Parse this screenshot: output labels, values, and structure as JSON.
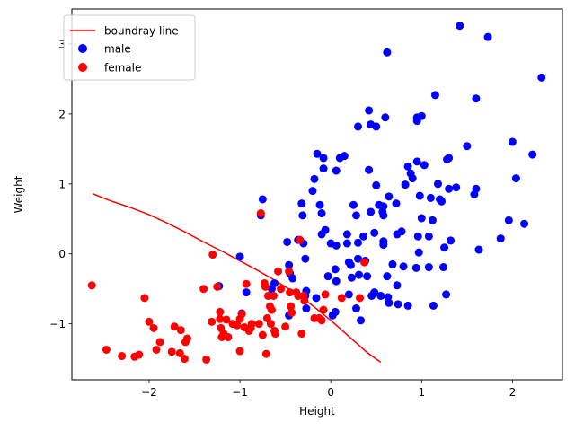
{
  "chart_data": {
    "type": "scatter",
    "title": "",
    "xlabel": "Height",
    "ylabel": "Weight",
    "xlim": [
      -2.85,
      2.55
    ],
    "ylim": [
      -1.8,
      3.5
    ],
    "xticks": [
      -2,
      -1,
      0,
      1,
      2
    ],
    "yticks": [
      -1,
      0,
      1,
      2,
      3
    ],
    "grid": false,
    "legend_position": "upper left",
    "colors": {
      "line": "#ff0000",
      "male": "#0000ff",
      "female": "#ff0000"
    },
    "line": {
      "name": "boundray line",
      "x": [
        -2.62,
        -2.45,
        -2.2,
        -2.0,
        -1.8,
        -1.6,
        -1.4,
        -1.2,
        -1.0,
        -0.8,
        -0.6,
        -0.4,
        -0.2,
        0.0,
        0.2,
        0.4,
        0.55
      ],
      "y": [
        0.86,
        0.77,
        0.66,
        0.56,
        0.44,
        0.31,
        0.17,
        0.04,
        -0.1,
        -0.24,
        -0.39,
        -0.55,
        -0.74,
        -0.95,
        -1.18,
        -1.41,
        -1.55
      ]
    },
    "series": [
      {
        "name": "male",
        "points": [
          [
            -0.75,
            0.78
          ],
          [
            -0.77,
            0.55
          ],
          [
            -1.0,
            -0.04
          ],
          [
            -0.98,
            -0.85
          ],
          [
            -1.23,
            -0.46
          ],
          [
            -0.93,
            -0.55
          ],
          [
            -0.65,
            -0.5
          ],
          [
            -0.62,
            -0.42
          ],
          [
            -0.48,
            0.17
          ],
          [
            -0.46,
            -0.16
          ],
          [
            -0.45,
            -0.28
          ],
          [
            -0.42,
            -0.35
          ],
          [
            -0.46,
            -0.88
          ],
          [
            -0.36,
            0.2
          ],
          [
            -0.32,
            0.72
          ],
          [
            -0.31,
            0.55
          ],
          [
            -0.3,
            0.15
          ],
          [
            -0.28,
            -0.07
          ],
          [
            -0.27,
            -0.53
          ],
          [
            -0.28,
            -0.6
          ],
          [
            -0.27,
            -0.78
          ],
          [
            -0.2,
            0.9
          ],
          [
            -0.18,
            1.07
          ],
          [
            -0.15,
            1.43
          ],
          [
            -0.12,
            0.7
          ],
          [
            -0.1,
            0.58
          ],
          [
            -0.1,
            0.28
          ],
          [
            -0.08,
            1.37
          ],
          [
            -0.08,
            1.22
          ],
          [
            -0.06,
            0.34
          ],
          [
            -0.16,
            -0.63
          ],
          [
            -0.03,
            -0.32
          ],
          [
            0.0,
            0.15
          ],
          [
            0.02,
            -0.88
          ],
          [
            0.05,
            -0.83
          ],
          [
            0.05,
            -0.22
          ],
          [
            0.06,
            -0.39
          ],
          [
            0.06,
            0.12
          ],
          [
            0.06,
            1.19
          ],
          [
            0.1,
            1.37
          ],
          [
            0.15,
            1.4
          ],
          [
            0.18,
            0.15
          ],
          [
            0.18,
            0.28
          ],
          [
            0.2,
            -0.12
          ],
          [
            0.2,
            -0.58
          ],
          [
            0.22,
            -0.16
          ],
          [
            0.23,
            -0.34
          ],
          [
            0.25,
            0.7
          ],
          [
            0.28,
            0.55
          ],
          [
            0.28,
            -0.78
          ],
          [
            0.3,
            1.82
          ],
          [
            0.3,
            0.16
          ],
          [
            0.3,
            -0.07
          ],
          [
            0.31,
            -0.3
          ],
          [
            0.33,
            -0.95
          ],
          [
            0.36,
            0.25
          ],
          [
            0.38,
            -0.1
          ],
          [
            0.4,
            -0.32
          ],
          [
            0.42,
            2.05
          ],
          [
            0.42,
            1.2
          ],
          [
            0.44,
            1.85
          ],
          [
            0.44,
            0.6
          ],
          [
            0.45,
            -0.6
          ],
          [
            0.48,
            0.3
          ],
          [
            0.48,
            -0.55
          ],
          [
            0.5,
            1.82
          ],
          [
            0.5,
            0.98
          ],
          [
            0.53,
            0.7
          ],
          [
            0.55,
            -0.6
          ],
          [
            0.57,
            0.6
          ],
          [
            0.58,
            0.68
          ],
          [
            0.58,
            0.55
          ],
          [
            0.58,
            0.18
          ],
          [
            0.58,
            0.13
          ],
          [
            0.6,
            1.95
          ],
          [
            0.62,
            2.88
          ],
          [
            0.62,
            -0.32
          ],
          [
            0.63,
            -0.62
          ],
          [
            0.64,
            -0.7
          ],
          [
            0.64,
            0.82
          ],
          [
            0.68,
            -0.15
          ],
          [
            0.72,
            0.72
          ],
          [
            0.73,
            0.28
          ],
          [
            0.73,
            -0.45
          ],
          [
            0.74,
            -0.72
          ],
          [
            0.78,
            0.32
          ],
          [
            0.8,
            -0.18
          ],
          [
            0.82,
            0.99
          ],
          [
            0.85,
            1.25
          ],
          [
            0.85,
            -0.74
          ],
          [
            0.88,
            1.15
          ],
          [
            0.9,
            1.08
          ],
          [
            0.94,
            -0.2
          ],
          [
            0.95,
            1.95
          ],
          [
            0.95,
            1.9
          ],
          [
            0.95,
            1.32
          ],
          [
            0.96,
            0.25
          ],
          [
            0.97,
            0.02
          ],
          [
            0.98,
            0.83
          ],
          [
            1.0,
            1.97
          ],
          [
            1.0,
            0.51
          ],
          [
            1.03,
            1.27
          ],
          [
            1.08,
            -0.19
          ],
          [
            1.08,
            0.25
          ],
          [
            1.1,
            0.8
          ],
          [
            1.12,
            0.48
          ],
          [
            1.13,
            -0.74
          ],
          [
            1.15,
            2.27
          ],
          [
            1.18,
            1.0
          ],
          [
            1.2,
            0.78
          ],
          [
            1.22,
            0.75
          ],
          [
            1.24,
            -0.19
          ],
          [
            1.25,
            0.09
          ],
          [
            1.27,
            -0.58
          ],
          [
            1.28,
            1.35
          ],
          [
            1.3,
            1.37
          ],
          [
            1.3,
            0.93
          ],
          [
            1.32,
            0.19
          ],
          [
            1.38,
            0.95
          ],
          [
            1.42,
            3.26
          ],
          [
            1.5,
            1.54
          ],
          [
            1.58,
            0.85
          ],
          [
            1.6,
            2.22
          ],
          [
            1.6,
            0.93
          ],
          [
            1.63,
            0.06
          ],
          [
            1.73,
            3.1
          ],
          [
            1.87,
            0.22
          ],
          [
            1.96,
            0.48
          ],
          [
            2.0,
            1.6
          ],
          [
            2.04,
            1.08
          ],
          [
            2.13,
            0.43
          ],
          [
            2.22,
            1.42
          ],
          [
            2.32,
            2.52
          ]
        ]
      },
      {
        "name": "female",
        "points": [
          [
            -2.63,
            -0.45
          ],
          [
            -2.47,
            -1.37
          ],
          [
            -2.3,
            -1.46
          ],
          [
            -2.16,
            -1.47
          ],
          [
            -2.11,
            -1.44
          ],
          [
            -2.05,
            -0.63
          ],
          [
            -2.0,
            -0.97
          ],
          [
            -1.95,
            -1.06
          ],
          [
            -1.92,
            -1.37
          ],
          [
            -1.88,
            -1.26
          ],
          [
            -1.75,
            -1.4
          ],
          [
            -1.72,
            -1.04
          ],
          [
            -1.66,
            -1.42
          ],
          [
            -1.65,
            -1.09
          ],
          [
            -1.61,
            -1.5
          ],
          [
            -1.6,
            -1.26
          ],
          [
            -1.58,
            -1.21
          ],
          [
            -1.4,
            -0.5
          ],
          [
            -1.37,
            -1.51
          ],
          [
            -1.31,
            -0.97
          ],
          [
            -1.3,
            -0.01
          ],
          [
            -1.25,
            -0.47
          ],
          [
            -1.22,
            -0.83
          ],
          [
            -1.22,
            -0.93
          ],
          [
            -1.21,
            -1.06
          ],
          [
            -1.2,
            -1.19
          ],
          [
            -1.18,
            -1.14
          ],
          [
            -1.15,
            -0.94
          ],
          [
            -1.13,
            -1.19
          ],
          [
            -1.08,
            -1.0
          ],
          [
            -1.03,
            -1.02
          ],
          [
            -1.0,
            -1.39
          ],
          [
            -1.0,
            -0.93
          ],
          [
            -0.98,
            -0.86
          ],
          [
            -0.95,
            -1.05
          ],
          [
            -0.93,
            -0.43
          ],
          [
            -0.9,
            -1.1
          ],
          [
            -0.88,
            -1.06
          ],
          [
            -0.87,
            -1.0
          ],
          [
            -0.79,
            -1.0
          ],
          [
            -0.77,
            0.58
          ],
          [
            -0.75,
            -1.16
          ],
          [
            -0.73,
            -0.42
          ],
          [
            -0.72,
            -0.47
          ],
          [
            -0.71,
            -1.43
          ],
          [
            -0.7,
            -0.92
          ],
          [
            -0.69,
            -0.6
          ],
          [
            -0.67,
            -0.75
          ],
          [
            -0.66,
            -1.0
          ],
          [
            -0.65,
            -0.8
          ],
          [
            -0.63,
            -0.6
          ],
          [
            -0.62,
            -1.1
          ],
          [
            -0.61,
            -1.14
          ],
          [
            -0.58,
            -0.25
          ],
          [
            -0.55,
            -0.5
          ],
          [
            -0.5,
            -1.04
          ],
          [
            -0.46,
            -0.25
          ],
          [
            -0.45,
            -0.55
          ],
          [
            -0.44,
            -0.75
          ],
          [
            -0.43,
            -0.84
          ],
          [
            -0.38,
            -0.55
          ],
          [
            -0.36,
            -0.6
          ],
          [
            -0.34,
            0.2
          ],
          [
            -0.32,
            -1.14
          ],
          [
            -0.3,
            -0.6
          ],
          [
            -0.29,
            -0.67
          ],
          [
            -0.18,
            -0.92
          ],
          [
            -0.13,
            -0.92
          ],
          [
            -0.1,
            -0.95
          ],
          [
            -0.06,
            -0.58
          ],
          [
            -0.08,
            -0.8
          ],
          [
            0.12,
            -0.63
          ],
          [
            0.32,
            -0.63
          ],
          [
            0.37,
            -0.12
          ]
        ]
      }
    ]
  }
}
